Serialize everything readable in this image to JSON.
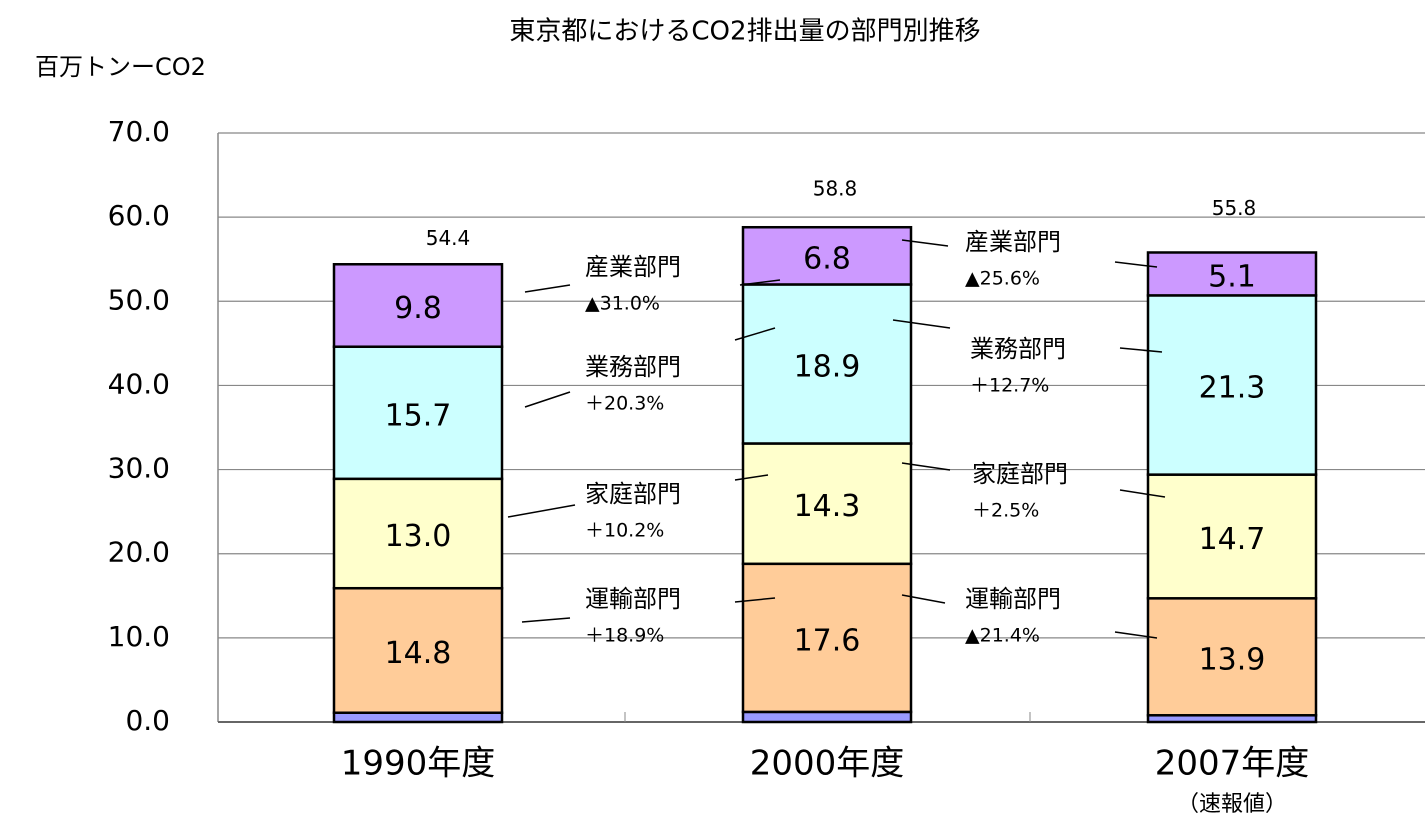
{
  "chart_data": {
    "type": "stacked_bar",
    "title": "東京都におけるCO2排出量の部門別推移",
    "y_label": "百万トンーCO2",
    "categories": [
      "1990年度",
      "2000年度",
      "2007年度"
    ],
    "category_notes": [
      null,
      null,
      "（速報値）"
    ],
    "series": [
      {
        "color": "#9999ff",
        "values": [
          1.1,
          1.2,
          0.8
        ]
      },
      {
        "name": "運輸部門",
        "color": "#ffcc99",
        "values": [
          14.8,
          17.6,
          13.9
        ],
        "value_labels": [
          "14.8",
          "17.6",
          "13.9"
        ],
        "changes": [
          "＋18.9%",
          "▲21.4%"
        ]
      },
      {
        "name": "家庭部門",
        "color": "#ffffcc",
        "values": [
          13.0,
          14.3,
          14.7
        ],
        "value_labels": [
          "13.0",
          "14.3",
          "14.7"
        ],
        "changes": [
          "＋10.2%",
          "＋2.5%"
        ]
      },
      {
        "name": "業務部門",
        "color": "#ccffff",
        "values": [
          15.7,
          18.9,
          21.3
        ],
        "value_labels": [
          "15.7",
          "18.9",
          "21.3"
        ],
        "changes": [
          "＋20.3%",
          "＋12.7%"
        ]
      },
      {
        "name": "産業部門",
        "color": "#cc99ff",
        "values": [
          9.8,
          6.8,
          5.1
        ],
        "value_labels": [
          "9.8",
          "6.8",
          "5.1"
        ],
        "changes": [
          "▲31.0%",
          "▲25.6%"
        ]
      }
    ],
    "totals": [
      54.4,
      58.8,
      55.8
    ],
    "ylim": [
      0,
      70
    ],
    "yticks": [
      {
        "value": 0,
        "label": "0.0"
      },
      {
        "value": 10,
        "label": "10.0"
      },
      {
        "value": 20,
        "label": "20.0"
      },
      {
        "value": 30,
        "label": "30.0"
      },
      {
        "value": 40,
        "label": "40.0"
      },
      {
        "value": 50,
        "label": "50.0"
      },
      {
        "value": 60,
        "label": "60.0"
      },
      {
        "value": 70,
        "label": "70.0"
      }
    ],
    "grid": true
  }
}
